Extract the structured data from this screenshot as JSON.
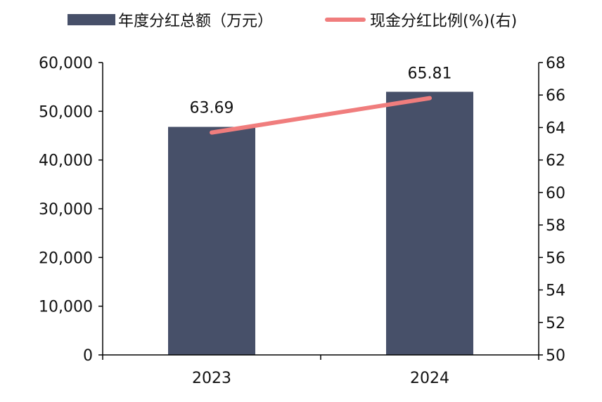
{
  "chart_data": {
    "type": "bar",
    "categories": [
      "2023",
      "2024"
    ],
    "series": [
      {
        "name": "年度分红总额（万元）",
        "type": "bar",
        "axis": "left",
        "values": [
          46800,
          54000
        ]
      },
      {
        "name": "现金分红比例(%)(右)",
        "type": "line",
        "axis": "right",
        "values": [
          63.69,
          65.81
        ]
      }
    ],
    "data_labels": [
      "63.69",
      "65.81"
    ],
    "y_left": {
      "min": 0,
      "max": 60000,
      "step": 10000
    },
    "y_right": {
      "min": 50,
      "max": 68,
      "step": 2
    },
    "grid": false,
    "legend_position": "top",
    "colors": {
      "bar": "#475069",
      "line": "#F07D7D",
      "axis": "#000000"
    }
  }
}
